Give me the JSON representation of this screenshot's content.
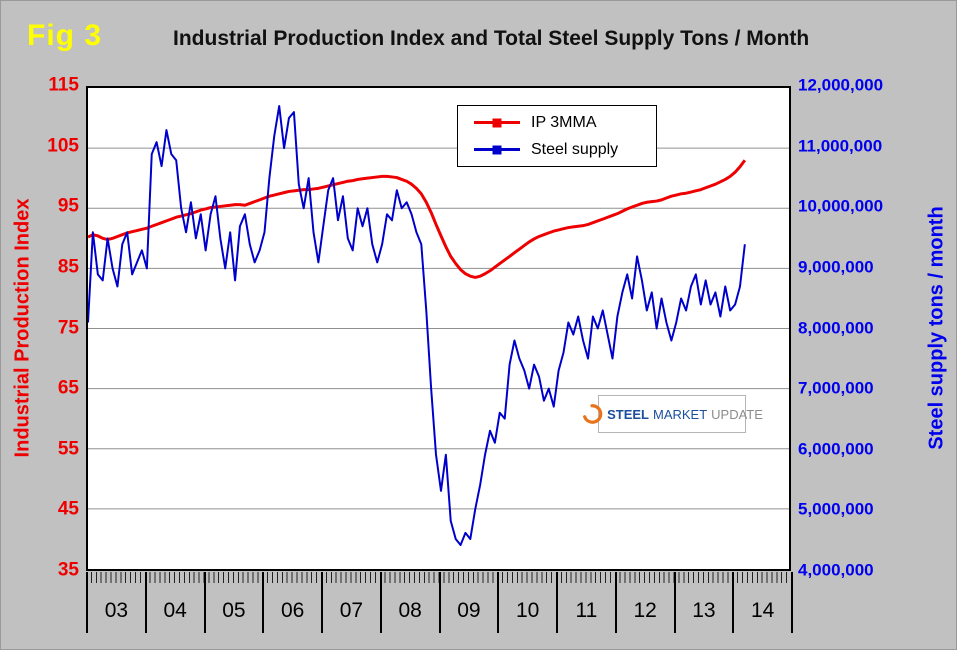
{
  "figure_label": "Fig 3",
  "title": "Industrial Production Index and Total Steel Supply Tons / Month",
  "colors": {
    "background": "#c1c1c1",
    "figure_label": "#ffff00",
    "title": "#111111",
    "left_axis": "#ee0000",
    "right_axis": "#0000ee",
    "gridline": "#909090",
    "plot_border": "#000000",
    "logo_blue": "#1b4f9e",
    "logo_gray": "#8c8c8c",
    "logo_orange": "#e8731a"
  },
  "legend": {
    "items": [
      {
        "label": "IP 3MMA"
      },
      {
        "label": "Steel supply"
      }
    ]
  },
  "logo": {
    "steel": "STEEL",
    "market": "MARKET",
    "update": "UPDATE"
  },
  "left_axis": {
    "title": "Industrial Production Index",
    "min": 35,
    "max": 115,
    "tick_step": 10,
    "ticks": [
      "115",
      "105",
      "95",
      "85",
      "75",
      "65",
      "55",
      "45",
      "35"
    ],
    "grid_values": [
      105,
      95,
      85,
      75,
      65,
      55,
      45
    ]
  },
  "right_axis": {
    "title": "Steel supply tons / month",
    "min": 4000000,
    "max": 12000000,
    "tick_step": 1000000,
    "ticks": [
      "12,000,000",
      "11,000,000",
      "10,000,000",
      "9,000,000",
      "8,000,000",
      "7,000,000",
      "6,000,000",
      "5,000,000",
      "4,000,000"
    ]
  },
  "x_axis": {
    "years": [
      "03",
      "04",
      "05",
      "06",
      "07",
      "08",
      "09",
      "10",
      "11",
      "12",
      "13",
      "14"
    ],
    "months_total": 144
  },
  "chart_data": {
    "type": "line",
    "title": "Industrial Production Index and Total Steel Supply Tons / Month",
    "x_start": "2003-01",
    "x_end": "2014-03",
    "x_frequency": "monthly",
    "axis_months": 144,
    "left_ylim": [
      35,
      115
    ],
    "right_ylim": [
      4000000,
      12000000
    ],
    "grid": "horizontal-only",
    "legend_position": "top-center-inside",
    "series": [
      {
        "name": "IP 3MMA",
        "axis": "left",
        "color": "#ee0000",
        "width": 3,
        "values": [
          90.2,
          90.6,
          90.4,
          90.0,
          89.8,
          90.0,
          90.3,
          90.6,
          90.9,
          91.1,
          91.3,
          91.5,
          91.7,
          92.0,
          92.3,
          92.6,
          92.9,
          93.2,
          93.5,
          93.7,
          93.9,
          94.1,
          94.4,
          94.7,
          94.9,
          95.1,
          95.2,
          95.3,
          95.4,
          95.5,
          95.6,
          95.6,
          95.5,
          95.8,
          96.1,
          96.4,
          96.7,
          97.0,
          97.2,
          97.4,
          97.6,
          97.8,
          97.9,
          98.0,
          98.1,
          98.1,
          98.2,
          98.3,
          98.5,
          98.7,
          98.9,
          99.1,
          99.3,
          99.5,
          99.6,
          99.8,
          99.9,
          100.0,
          100.1,
          100.2,
          100.3,
          100.3,
          100.2,
          100.1,
          99.8,
          99.5,
          99.0,
          98.3,
          97.4,
          96.0,
          94.3,
          92.3,
          90.4,
          88.6,
          87.0,
          85.8,
          84.8,
          84.1,
          83.7,
          83.5,
          83.7,
          84.1,
          84.6,
          85.2,
          85.8,
          86.4,
          87.0,
          87.6,
          88.2,
          88.8,
          89.4,
          89.9,
          90.3,
          90.6,
          90.9,
          91.2,
          91.4,
          91.6,
          91.8,
          91.9,
          92.0,
          92.1,
          92.3,
          92.6,
          92.9,
          93.2,
          93.5,
          93.8,
          94.1,
          94.5,
          94.9,
          95.2,
          95.5,
          95.8,
          96.0,
          96.1,
          96.2,
          96.4,
          96.7,
          97.0,
          97.2,
          97.4,
          97.5,
          97.7,
          97.9,
          98.1,
          98.4,
          98.7,
          99.0,
          99.4,
          99.8,
          100.3,
          101.0,
          101.9,
          103.0
        ]
      },
      {
        "name": "Steel supply",
        "axis": "right",
        "color": "#0000cc",
        "width": 2,
        "values": [
          8100000,
          9600000,
          8900000,
          8800000,
          9500000,
          9000000,
          8700000,
          9400000,
          9600000,
          8900000,
          9100000,
          9300000,
          9000000,
          10900000,
          11100000,
          10700000,
          11300000,
          10900000,
          10800000,
          10000000,
          9600000,
          10100000,
          9500000,
          9900000,
          9300000,
          9900000,
          10200000,
          9500000,
          9000000,
          9600000,
          8800000,
          9700000,
          9900000,
          9400000,
          9100000,
          9300000,
          9600000,
          10500000,
          11200000,
          11700000,
          11000000,
          11500000,
          11600000,
          10400000,
          10000000,
          10500000,
          9600000,
          9100000,
          9700000,
          10300000,
          10500000,
          9800000,
          10200000,
          9500000,
          9300000,
          10000000,
          9700000,
          10000000,
          9400000,
          9100000,
          9400000,
          9900000,
          9800000,
          10300000,
          10000000,
          10100000,
          9900000,
          9600000,
          9400000,
          8300000,
          7000000,
          5900000,
          5300000,
          5900000,
          4800000,
          4500000,
          4400000,
          4600000,
          4500000,
          5000000,
          5400000,
          5900000,
          6300000,
          6100000,
          6600000,
          6500000,
          7400000,
          7800000,
          7500000,
          7300000,
          7000000,
          7400000,
          7200000,
          6800000,
          7000000,
          6700000,
          7300000,
          7600000,
          8100000,
          7900000,
          8200000,
          7800000,
          7500000,
          8200000,
          8000000,
          8300000,
          7900000,
          7500000,
          8200000,
          8600000,
          8900000,
          8500000,
          9200000,
          8800000,
          8300000,
          8600000,
          8000000,
          8500000,
          8100000,
          7800000,
          8100000,
          8500000,
          8300000,
          8700000,
          8900000,
          8400000,
          8800000,
          8400000,
          8600000,
          8200000,
          8700000,
          8300000,
          8400000,
          8700000,
          9400000
        ]
      }
    ]
  }
}
